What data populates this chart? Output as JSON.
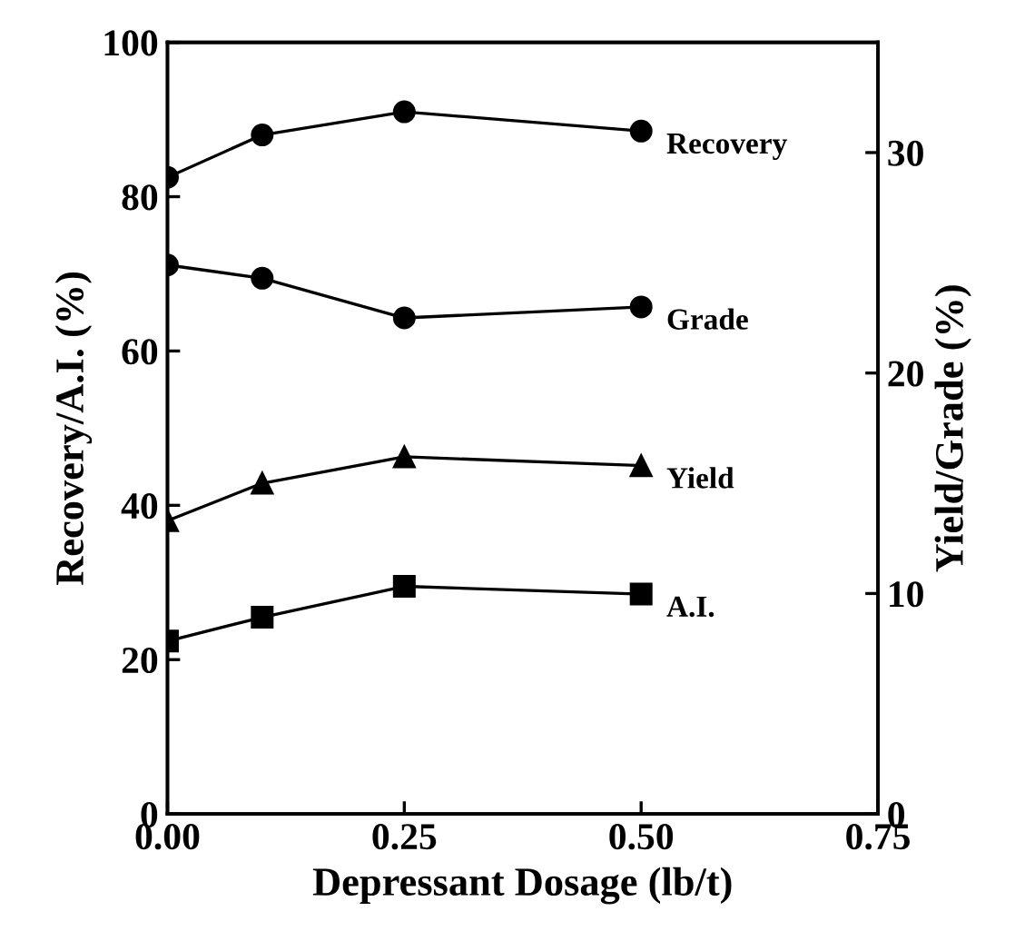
{
  "chart_data": {
    "type": "line",
    "xlabel": "Depressant Dosage (lb/t)",
    "ylabel": "Recovery/A.I. (%)",
    "y2label": "Yield/Grade (%)",
    "x": [
      0,
      0.1,
      0.25,
      0.5
    ],
    "series": [
      {
        "name": "Recovery",
        "color": "#000000",
        "marker": "circle",
        "values": [
          82.5,
          88,
          91,
          88.5
        ]
      },
      {
        "name": "Grade",
        "color": "#000000",
        "marker": "circle",
        "axis": "y2",
        "values": [
          24.9,
          24.3,
          22.5,
          23.0
        ]
      },
      {
        "name": "Yield",
        "color": "#000000",
        "marker": "triangle",
        "axis": "y2",
        "values": [
          13.3,
          15.0,
          16.2,
          15.8
        ]
      },
      {
        "name": "A.I.",
        "color": "#000000",
        "marker": "square",
        "values": [
          22.4,
          25.5,
          29.5,
          28.5
        ]
      }
    ],
    "xlim": [
      0,
      0.75
    ],
    "xticks": [
      {
        "value": 0,
        "label": "0.00"
      },
      {
        "value": 0.25,
        "label": "0.25"
      },
      {
        "value": 0.5,
        "label": "0.50"
      },
      {
        "value": 0.75,
        "label": "0.75"
      }
    ],
    "ylim": [
      0,
      100
    ],
    "yticks": [
      0,
      20,
      40,
      60,
      80,
      100
    ],
    "y2lim": [
      0,
      35
    ],
    "y2ticks": [
      0,
      10,
      20,
      30
    ],
    "grid": false,
    "legend": false
  }
}
